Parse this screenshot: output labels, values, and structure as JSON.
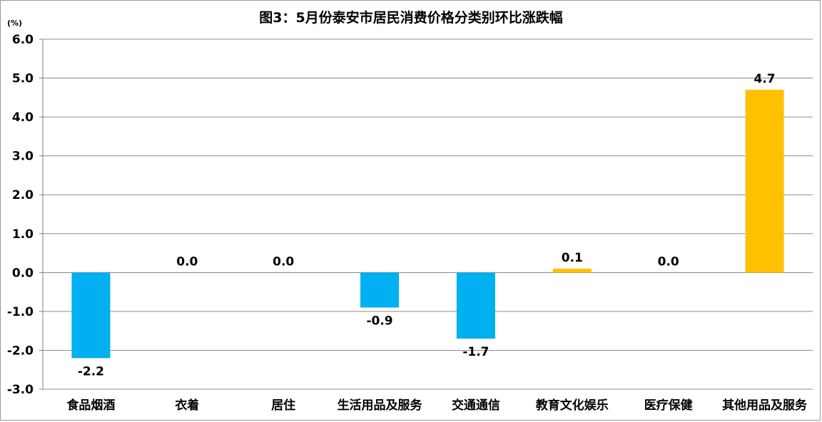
{
  "chart_data": {
    "type": "bar",
    "title": "图3：5月份泰安市居民消费价格分类别环比涨跌幅",
    "ylabel": "(%)",
    "xlabel": "",
    "ylim": [
      -3.0,
      6.0
    ],
    "yticks": [
      "6.0",
      "5.0",
      "4.0",
      "3.0",
      "2.0",
      "1.0",
      "0.0",
      "-1.0",
      "-2.0",
      "-3.0"
    ],
    "categories": [
      "食品烟酒",
      "衣着",
      "居住",
      "生活用品及服务",
      "交通通信",
      "教育文化娱乐",
      "医疗保健",
      "其他用品及服务"
    ],
    "values": [
      -2.2,
      0.0,
      0.0,
      -0.9,
      -1.7,
      0.1,
      0.0,
      4.7
    ],
    "value_labels": [
      "-2.2",
      "0.0",
      "0.0",
      "-0.9",
      "-1.7",
      "0.1",
      "0.0",
      "4.7"
    ],
    "grid": true,
    "colors": {
      "negative": "#00b0f0",
      "positive": "#ffc000",
      "grid": "#8c8c8c",
      "axis": "#7f7f7f"
    }
  }
}
